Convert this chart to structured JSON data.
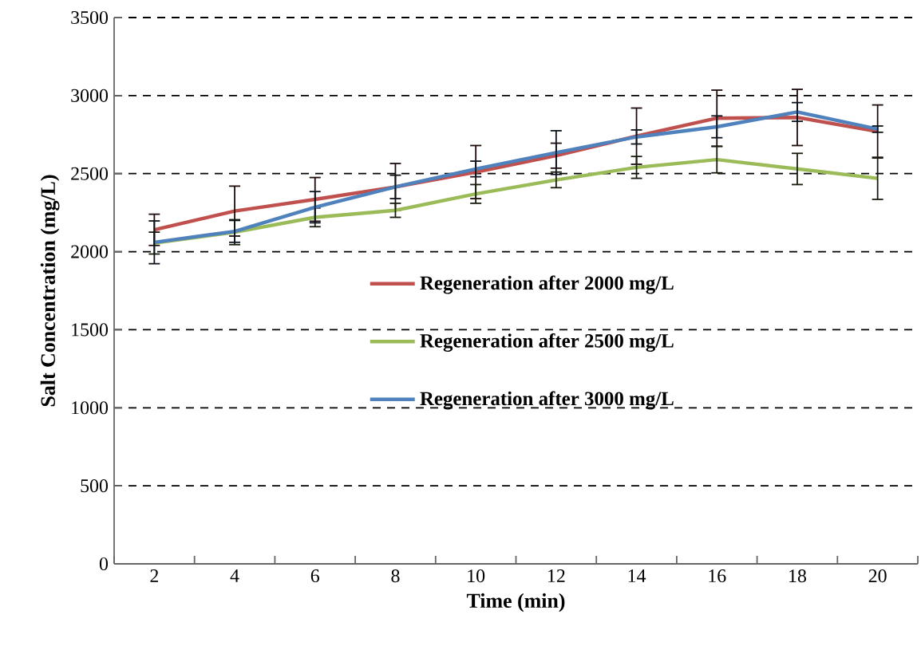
{
  "chart_data": {
    "type": "line",
    "xlabel": "Time (min)",
    "ylabel": "Salt Concentration (mg/L)",
    "categories": [
      "2",
      "4",
      "6",
      "8",
      "10",
      "12",
      "14",
      "16",
      "18",
      "20"
    ],
    "ylim": [
      0,
      3500
    ],
    "yticks": [
      0,
      500,
      1000,
      1500,
      2000,
      2500,
      3000,
      3500
    ],
    "grid": "y",
    "legend": "center",
    "marker": "none",
    "line_style": "solid",
    "series": [
      {
        "name": "Regeneration after 2000 mg/L",
        "color": "#c0504d",
        "values": [
          2140,
          2260,
          2335,
          2415,
          2510,
          2615,
          2740,
          2855,
          2860,
          2770
        ],
        "errors": [
          100,
          160,
          140,
          150,
          170,
          80,
          180,
          180,
          180,
          170
        ]
      },
      {
        "name": "Regeneration after 2500 mg/L",
        "color": "#9bbb59",
        "values": [
          2055,
          2125,
          2220,
          2265,
          2370,
          2460,
          2540,
          2590,
          2530,
          2470
        ],
        "errors": [
          70,
          80,
          60,
          45,
          60,
          50,
          70,
          85,
          100,
          135
        ]
      },
      {
        "name": "Regeneration after 3000 mg/L",
        "color": "#4f81bd",
        "values": [
          2060,
          2130,
          2285,
          2415,
          2530,
          2635,
          2735,
          2800,
          2895,
          2785
        ],
        "errors": [
          137,
          70,
          100,
          75,
          50,
          140,
          45,
          70,
          60,
          20
        ]
      }
    ]
  }
}
